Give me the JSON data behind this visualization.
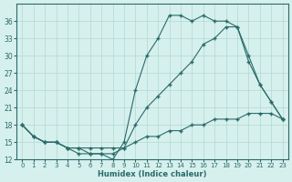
{
  "xlabel": "Humidex (Indice chaleur)",
  "x": [
    0,
    1,
    2,
    3,
    4,
    5,
    6,
    7,
    8,
    9,
    10,
    11,
    12,
    13,
    14,
    15,
    16,
    17,
    18,
    19,
    20,
    21,
    22,
    23
  ],
  "line_top": [
    18,
    16,
    15,
    15,
    14,
    13,
    13,
    13,
    12,
    15,
    24,
    30,
    33,
    37,
    37,
    36,
    37,
    36,
    36,
    35,
    30,
    25,
    22,
    19
  ],
  "line_mid": [
    18,
    16,
    15,
    15,
    14,
    14,
    13,
    13,
    13,
    14,
    18,
    21,
    23,
    25,
    27,
    29,
    32,
    33,
    35,
    35,
    29,
    25,
    22,
    19
  ],
  "line_bot": [
    18,
    16,
    15,
    15,
    14,
    14,
    14,
    14,
    14,
    14,
    15,
    16,
    16,
    17,
    17,
    18,
    18,
    19,
    19,
    19,
    20,
    20,
    20,
    19
  ],
  "line_color": "#2a6b68",
  "bg_color": "#d6f0ee",
  "grid_color": "#b0d8d0",
  "ylim": [
    12,
    39
  ],
  "yticks": [
    12,
    15,
    18,
    21,
    24,
    27,
    30,
    33,
    36
  ],
  "xlim": [
    -0.5,
    23.5
  ],
  "xticks": [
    0,
    1,
    2,
    3,
    4,
    5,
    6,
    7,
    8,
    9,
    10,
    11,
    12,
    13,
    14,
    15,
    16,
    17,
    18,
    19,
    20,
    21,
    22,
    23
  ]
}
